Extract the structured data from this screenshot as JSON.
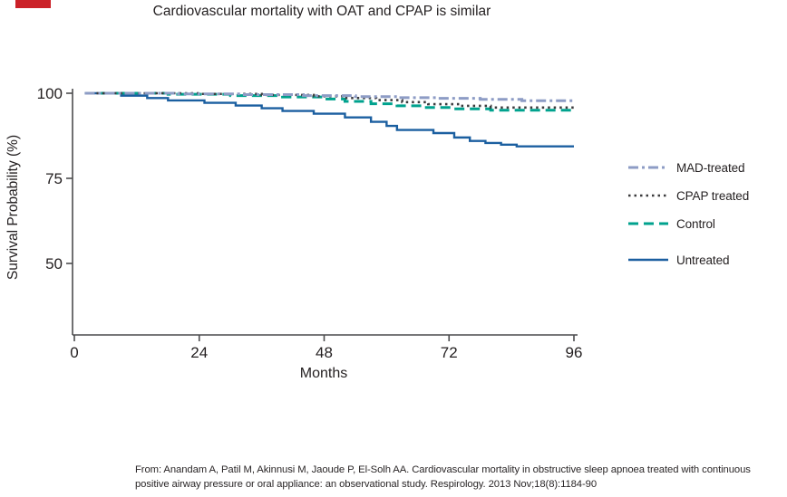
{
  "title": "Cardiovascular mortality with OAT and CPAP is similar",
  "colors": {
    "corner_mark": "#cb2128",
    "axis": "#4c4c4e",
    "text": "#231f20"
  },
  "citation": {
    "line1": "From: Anandam A, Patil M, Akinnusi M, Jaoude P, El-Solh AA. Cardiovascular mortality in obstructive sleep apnoea treated with continuous",
    "line2": "positive airway pressure or oral appliance: an observational study. Respirology. 2013 Nov;18(8):1184-90"
  },
  "chart_data": {
    "type": "line",
    "subtype": "kaplan-meier-step",
    "title": "Cardiovascular mortality with OAT and CPAP is similar",
    "xlabel": "Months",
    "ylabel": "Survival Probability (%)",
    "xlim": [
      0,
      96
    ],
    "ylim": [
      28,
      101
    ],
    "xticks": [
      0,
      24,
      48,
      72,
      96
    ],
    "yticks": [
      100,
      75,
      50
    ],
    "grid": false,
    "legend_position": "right",
    "series": [
      {
        "name": "MAD-treated",
        "color": "#8d9cc5",
        "dash": "11 4 3 4",
        "width": 3,
        "points": [
          [
            2,
            100
          ],
          [
            20,
            99.8
          ],
          [
            32,
            99.6
          ],
          [
            44,
            99.3
          ],
          [
            54,
            99.0
          ],
          [
            62,
            98.7
          ],
          [
            70,
            98.5
          ],
          [
            78,
            98.2
          ],
          [
            86,
            97.8
          ],
          [
            96,
            97.8
          ]
        ]
      },
      {
        "name": "CPAP treated",
        "color": "#3b3b3d",
        "dash": "2.5 4",
        "width": 2.6,
        "points": [
          [
            2,
            100
          ],
          [
            24,
            99.8
          ],
          [
            36,
            99.5
          ],
          [
            46,
            99.1
          ],
          [
            52,
            98.6
          ],
          [
            58,
            98.0
          ],
          [
            63,
            97.4
          ],
          [
            68,
            96.8
          ],
          [
            74,
            96.3
          ],
          [
            80,
            95.8
          ],
          [
            96,
            95.8
          ]
        ]
      },
      {
        "name": "Control",
        "color": "#00a28e",
        "dash": "11 6",
        "width": 3,
        "points": [
          [
            2,
            100
          ],
          [
            18,
            99.7
          ],
          [
            30,
            99.3
          ],
          [
            40,
            98.9
          ],
          [
            48,
            98.3
          ],
          [
            52,
            97.6
          ],
          [
            57,
            96.9
          ],
          [
            62,
            96.3
          ],
          [
            67,
            95.8
          ],
          [
            72,
            95.4
          ],
          [
            80,
            95.0
          ],
          [
            96,
            95.0
          ]
        ]
      },
      {
        "name": "Untreated",
        "color": "#1b5fa0",
        "dash": "",
        "width": 2.4,
        "points": [
          [
            2,
            100
          ],
          [
            9,
            99.3
          ],
          [
            14,
            98.6
          ],
          [
            18,
            97.9
          ],
          [
            25,
            97.2
          ],
          [
            31,
            96.4
          ],
          [
            36,
            95.6
          ],
          [
            40,
            94.8
          ],
          [
            46,
            94.0
          ],
          [
            52,
            92.9
          ],
          [
            57,
            91.6
          ],
          [
            60,
            90.4
          ],
          [
            62,
            89.2
          ],
          [
            69,
            88.3
          ],
          [
            73,
            87.0
          ],
          [
            76,
            86.0
          ],
          [
            79,
            85.4
          ],
          [
            82,
            84.9
          ],
          [
            85,
            84.4
          ],
          [
            96,
            84.4
          ]
        ]
      }
    ]
  }
}
